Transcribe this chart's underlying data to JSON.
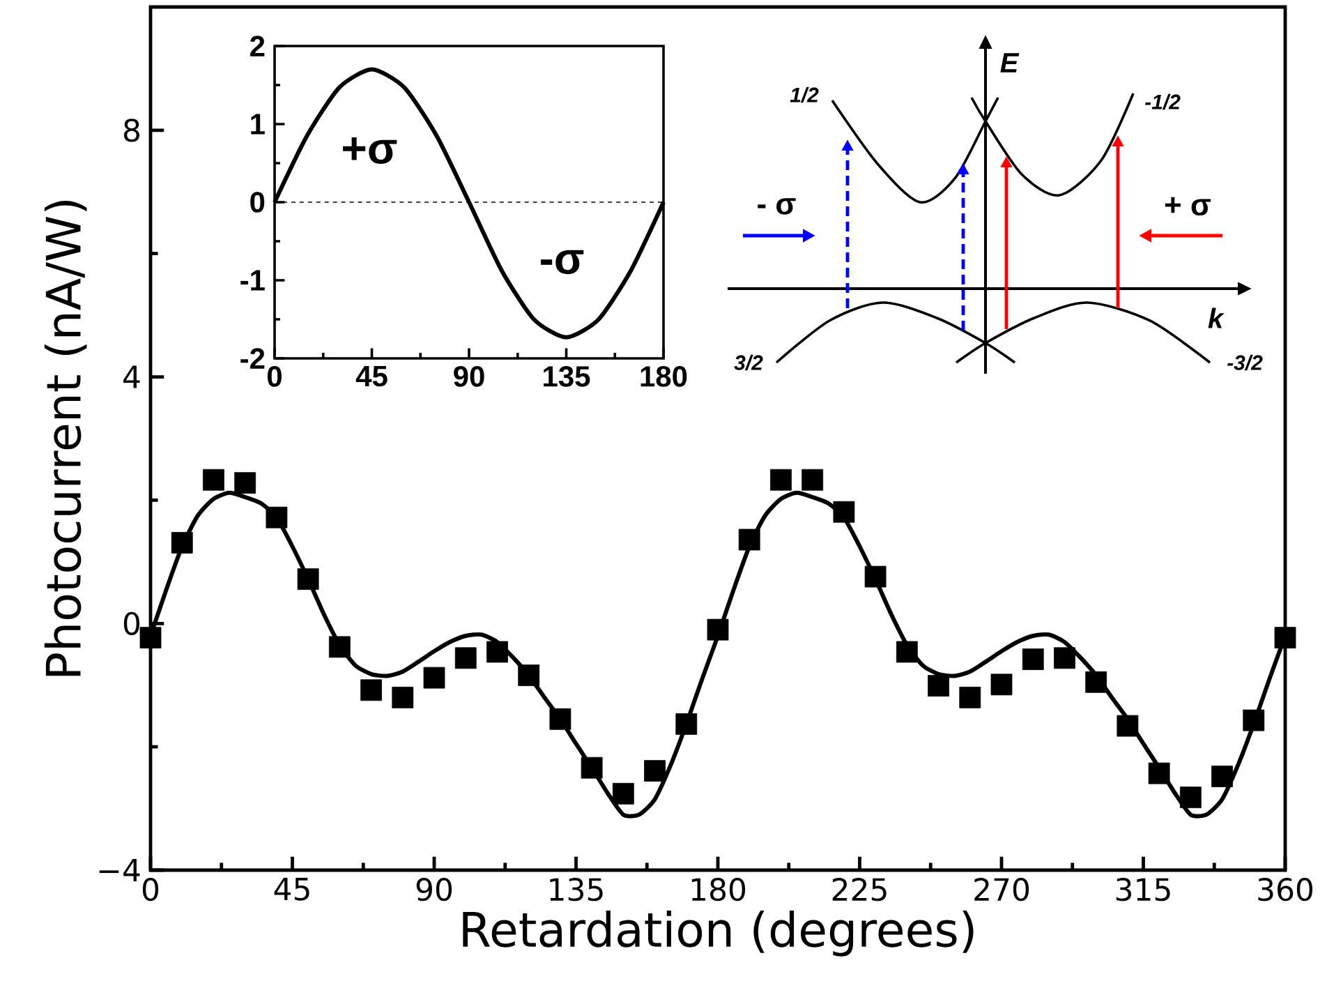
{
  "chart_data": [
    {
      "type": "scatter",
      "xlabel": "Retardation (degrees)",
      "ylabel": "Photocurrent (nA/W)",
      "xlim": [
        0,
        360
      ],
      "ylim": [
        -4,
        10
      ],
      "xticks": [
        0,
        45,
        90,
        135,
        180,
        225,
        270,
        315,
        360
      ],
      "yticks": [
        {
          "value": -4,
          "label": "−4"
        },
        0,
        4,
        8
      ],
      "annotations": [
        "E",
        "k",
        "1/2",
        "-1/2",
        "3/2",
        "-3/2",
        "- σ",
        "+ σ"
      ],
      "series": [
        {
          "type": "scatter",
          "marker": "square",
          "color": "#000000",
          "x": [
            0,
            10,
            20,
            30,
            40,
            50,
            60,
            70,
            80,
            90,
            100,
            110,
            120,
            130,
            140,
            150,
            160,
            170,
            180,
            190,
            200,
            210,
            220,
            230,
            240,
            250,
            260,
            270,
            280,
            290,
            300,
            310,
            320,
            330,
            340,
            350,
            360
          ],
          "values": [
            -0.23,
            1.31,
            2.33,
            2.28,
            1.72,
            0.72,
            -0.38,
            -1.08,
            -1.2,
            -0.88,
            -0.56,
            -0.46,
            -0.84,
            -1.55,
            -2.34,
            -2.76,
            -2.39,
            -1.63,
            -0.1,
            1.36,
            2.33,
            2.33,
            1.81,
            0.76,
            -0.46,
            -1.01,
            -1.2,
            -0.99,
            -0.58,
            -0.56,
            -0.95,
            -1.66,
            -2.43,
            -2.82,
            -2.48,
            -1.57,
            -0.23
          ]
        },
        {
          "type": "line",
          "marker": "none",
          "line_style": "solid",
          "color": "#000000",
          "x": [
            0,
            5,
            10,
            15,
            20,
            25,
            30,
            35,
            40,
            45,
            50,
            55,
            60,
            65,
            70,
            75,
            80,
            85,
            90,
            95,
            100,
            105,
            110,
            115,
            120,
            125,
            130,
            135,
            140,
            145,
            150,
            155,
            160,
            165,
            170,
            175,
            180,
            185,
            190,
            195,
            200,
            205,
            210,
            215,
            220,
            225,
            230,
            235,
            240,
            245,
            250,
            255,
            260,
            265,
            270,
            275,
            280,
            285,
            290,
            295,
            300,
            305,
            310,
            315,
            320,
            325,
            330,
            335,
            340,
            345,
            350,
            355,
            360
          ],
          "values": [
            -0.2,
            0.55,
            1.25,
            1.75,
            2.02,
            2.12,
            2.05,
            1.95,
            1.72,
            1.25,
            0.72,
            0.15,
            -0.35,
            -0.68,
            -0.82,
            -0.85,
            -0.78,
            -0.62,
            -0.45,
            -0.3,
            -0.2,
            -0.18,
            -0.3,
            -0.55,
            -0.84,
            -1.2,
            -1.55,
            -1.95,
            -2.34,
            -2.75,
            -3.1,
            -3.1,
            -2.85,
            -2.3,
            -1.63,
            -0.9,
            -0.2,
            0.55,
            1.25,
            1.75,
            2.02,
            2.12,
            2.05,
            1.95,
            1.72,
            1.25,
            0.72,
            0.15,
            -0.35,
            -0.68,
            -0.82,
            -0.85,
            -0.78,
            -0.62,
            -0.45,
            -0.3,
            -0.2,
            -0.18,
            -0.3,
            -0.55,
            -0.84,
            -1.2,
            -1.55,
            -1.95,
            -2.34,
            -2.75,
            -3.1,
            -3.1,
            -2.85,
            -2.3,
            -1.63,
            -0.9,
            -0.2
          ]
        }
      ]
    },
    {
      "type": "line",
      "xlim": [
        0,
        180
      ],
      "ylim": [
        -2,
        2
      ],
      "xticks": [
        0,
        45,
        90,
        135,
        180
      ],
      "yticks": [
        -2,
        -1,
        0,
        1,
        2
      ],
      "ref_lines": [
        {
          "axis": "y",
          "value": 0,
          "line_style": "dashed"
        }
      ],
      "annotations": [
        "+σ",
        "-σ"
      ],
      "series": [
        {
          "color": "#000000",
          "line_style": "solid",
          "x": [
            0,
            15,
            30,
            45,
            60,
            75,
            90,
            105,
            120,
            135,
            150,
            165,
            180
          ],
          "values": [
            0,
            0.85,
            1.47,
            1.7,
            1.47,
            0.85,
            0,
            -0.87,
            -1.5,
            -1.73,
            -1.5,
            -0.87,
            0
          ]
        }
      ]
    }
  ]
}
